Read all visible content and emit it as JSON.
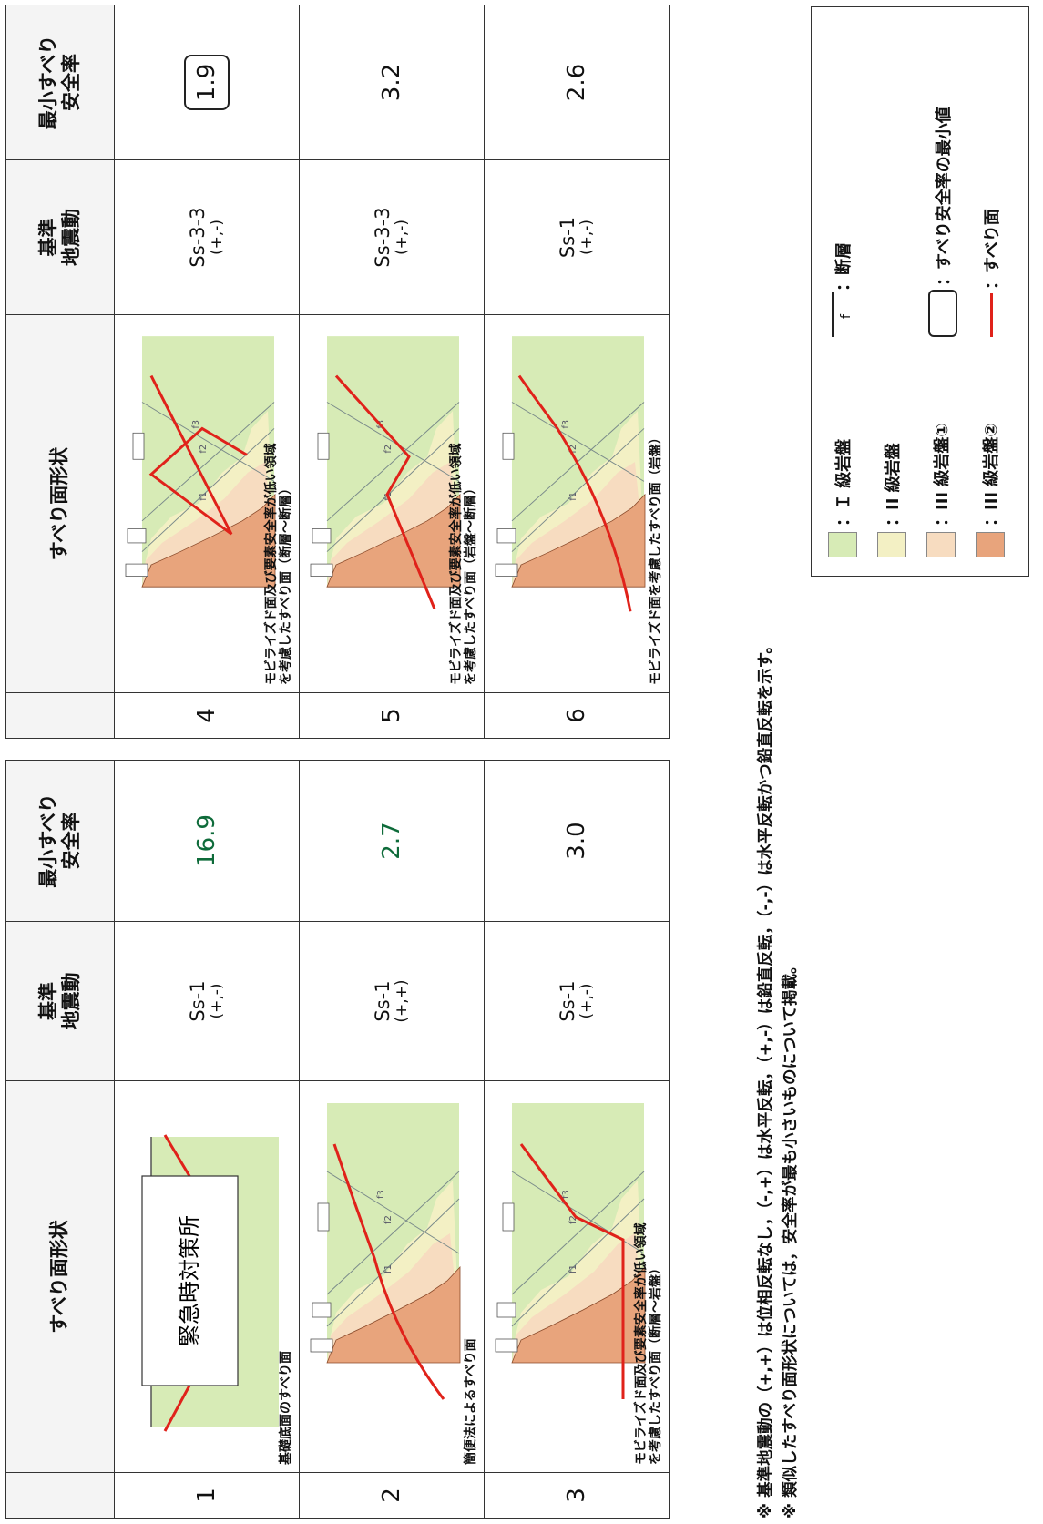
{
  "headers": {
    "shape": "すべり面形状",
    "motion": "基準\n地震動",
    "sf": "最小すべり\n安全率"
  },
  "left_rows": [
    {
      "no": "1",
      "caption": "基礎底面のすべり面",
      "building": "緊急時対策所",
      "motion": "Ss-1",
      "sign": "(+,-)",
      "sf": "16.9"
    },
    {
      "no": "2",
      "caption": "簡便法によるすべり面",
      "motion": "Ss-1",
      "sign": "(+,+)",
      "sf": "2.7"
    },
    {
      "no": "3",
      "caption": "モビライズド面及び要素安全率が低い領域\nを考慮したすべり面（断層～岩盤）",
      "motion": "Ss-1",
      "sign": "(+,-)",
      "sf": "3.0"
    }
  ],
  "right_rows": [
    {
      "no": "4",
      "caption": "モビライズド面及び要素安全率が低い領域\nを考慮したすべり面（断層～断層）",
      "motion": "Ss-3-3",
      "sign": "(+,-)",
      "sf": "1.9"
    },
    {
      "no": "5",
      "caption": "モビライズド面及び要素安全率が低い領域\nを考慮したすべり面（岩盤～断層）",
      "motion": "Ss-3-3",
      "sign": "(+,-)",
      "sf": "3.2"
    },
    {
      "no": "6",
      "caption": "モビライズド面を考慮したすべり面（岩盤）",
      "motion": "Ss-1",
      "sign": "(+,-)",
      "sf": "2.6"
    }
  ],
  "fault_labels": {
    "f1": "f1",
    "f2": "f2",
    "f3": "f3"
  },
  "notes": [
    "※ 基準地震動の（+,+）は位相反転なし，（-,+）は水平反転，（+,-）は鉛直反転，（-,-）は水平反転かつ鉛直反転を示す。",
    "※ 類似したすべり面形状については，安全率が最も小さいものについて掲載。"
  ],
  "legend": {
    "rock1": "：Ｉ 級岩盤",
    "rock2": "：II 級岩盤",
    "rock3a": "：III 級岩盤①",
    "rock3b": "：III 級岩盤②",
    "fault": "：断層",
    "fault_symbol": "f",
    "min_sf": "：すべり安全率の最小値",
    "slip": "：すべり面"
  },
  "colors": {
    "rock1": "#d7ebb6",
    "rock2": "#f3f0c4",
    "rock3a": "#f7dcc0",
    "rock3b": "#e8a47c",
    "slip": "#e0221a",
    "fault": "#7a8a8a",
    "sf_green": "#0e6b3a"
  }
}
